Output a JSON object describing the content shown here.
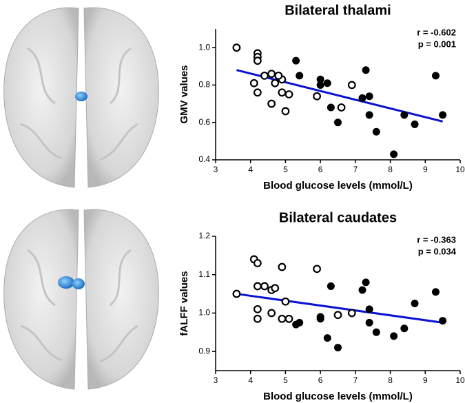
{
  "chart_data": [
    {
      "type": "scatter",
      "title": "Bilateral thalami",
      "x_label": "Blood glucose levels (mmol/L)",
      "y_label": "GMV values",
      "annotations": [
        "r = -0.602",
        "p = 0.001"
      ],
      "xlim": [
        3,
        10
      ],
      "xticks": [
        3,
        4,
        5,
        6,
        7,
        8,
        9,
        10
      ],
      "ylim": [
        0.4,
        1.1
      ],
      "yticks": [
        0.4,
        0.6,
        0.8,
        {
          "value": 1,
          "label": "1.0"
        }
      ],
      "series": [
        {
          "marker": "open",
          "color": "#000000",
          "x": [
            3.6,
            4.2,
            4.2,
            4.2,
            4.1,
            4.2,
            4.4,
            4.6,
            4.7,
            4.9,
            4.9,
            4.6,
            5.1,
            5.0,
            4.8,
            5.9,
            6.6,
            6.9
          ],
          "values": [
            1.0,
            0.97,
            0.95,
            0.93,
            0.81,
            0.76,
            0.85,
            0.86,
            0.81,
            0.83,
            0.76,
            0.7,
            0.75,
            0.66,
            0.85,
            0.74,
            0.68,
            0.8
          ]
        },
        {
          "marker": "filled",
          "color": "#000000",
          "x": [
            5.3,
            5.4,
            6.0,
            6.0,
            6.2,
            6.3,
            6.5,
            7.2,
            7.3,
            7.4,
            7.4,
            7.6,
            8.1,
            8.4,
            8.7,
            9.3,
            9.5
          ],
          "values": [
            0.93,
            0.85,
            0.83,
            0.8,
            0.81,
            0.68,
            0.6,
            0.73,
            0.88,
            0.74,
            0.64,
            0.55,
            0.43,
            0.64,
            0.59,
            0.85,
            0.64
          ]
        }
      ],
      "trend_line": {
        "color": "#0a14d2",
        "x": [
          3.6,
          9.5
        ],
        "values": [
          0.88,
          0.605
        ]
      }
    },
    {
      "type": "scatter",
      "title": "Bilateral caudates",
      "x_label": "Blood glucose levels (mmol/L)",
      "y_label": "fALFF values",
      "annotations": [
        "r = -0.363",
        "p = 0.034"
      ],
      "xlim": [
        3,
        10
      ],
      "xticks": [
        3,
        4,
        5,
        6,
        7,
        8,
        9,
        10
      ],
      "ylim": [
        0.85,
        1.2
      ],
      "yticks": [
        0.9,
        {
          "value": 1,
          "label": "1.0"
        },
        1.1,
        1.2
      ],
      "series": [
        {
          "marker": "open",
          "color": "#000000",
          "x": [
            3.6,
            4.1,
            4.2,
            4.2,
            4.2,
            4.2,
            4.4,
            4.6,
            4.7,
            4.6,
            4.9,
            5.0,
            4.9,
            5.1,
            5.9,
            6.5,
            6.9
          ],
          "values": [
            1.05,
            1.14,
            1.13,
            1.07,
            1.01,
            0.985,
            1.07,
            1.06,
            1.065,
            1.0,
            1.12,
            1.03,
            0.985,
            0.985,
            1.115,
            0.995,
            1.0
          ]
        },
        {
          "marker": "filled",
          "color": "#000000",
          "x": [
            5.3,
            5.4,
            6.0,
            6.0,
            6.2,
            6.3,
            6.5,
            7.2,
            7.3,
            7.4,
            7.4,
            7.6,
            8.1,
            8.4,
            8.7,
            9.3,
            9.5
          ],
          "values": [
            0.97,
            0.975,
            0.99,
            0.985,
            0.935,
            1.07,
            0.91,
            1.06,
            1.08,
            1.01,
            0.975,
            0.95,
            0.94,
            0.96,
            1.025,
            1.055,
            0.98
          ]
        }
      ],
      "trend_line": {
        "color": "#0a14d2",
        "x": [
          3.6,
          9.5
        ],
        "values": [
          1.05,
          0.975
        ]
      }
    }
  ]
}
